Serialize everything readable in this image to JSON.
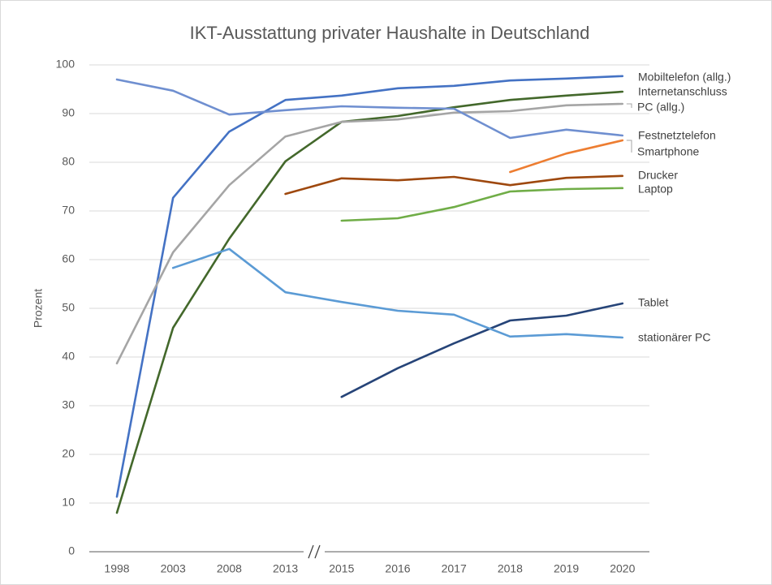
{
  "chart_data": {
    "type": "line",
    "title": "IKT-Ausstattung privater Haushalte in Deutschland",
    "y_label": "Prozent",
    "categories": [
      "1998",
      "2003",
      "2008",
      "2013",
      "2015",
      "2016",
      "2017",
      "2018",
      "2019",
      "2020"
    ],
    "ylim": [
      0,
      100
    ],
    "yticks": [
      0,
      10,
      20,
      30,
      40,
      50,
      60,
      70,
      80,
      90,
      100
    ],
    "grid": true,
    "series": [
      {
        "name": "Mobiltelefon (allg.)",
        "color": "#4472c4",
        "values": [
          11.3,
          72.7,
          86.3,
          92.8,
          93.7,
          95.2,
          95.7,
          96.8,
          97.2,
          97.7
        ]
      },
      {
        "name": "Internetanschluss",
        "color": "#43682b",
        "values": [
          8.0,
          46,
          64.3,
          80.2,
          88.3,
          89.5,
          91.3,
          92.8,
          93.7,
          94.5
        ]
      },
      {
        "name": "PC (allg.)",
        "color": "#a5a5a5",
        "values": [
          38.7,
          61.5,
          75.3,
          85.3,
          88.3,
          88.8,
          90.2,
          90.5,
          91.7,
          92
        ]
      },
      {
        "name": "Festnetztelefon",
        "color": "#6f8fd0",
        "values": [
          97,
          94.7,
          89.8,
          90.7,
          91.5,
          91.2,
          91,
          85,
          86.7,
          85.5
        ]
      },
      {
        "name": "Smartphone",
        "color": "#ed7d31",
        "values": [
          null,
          null,
          null,
          null,
          null,
          null,
          null,
          78,
          81.8,
          84.5
        ]
      },
      {
        "name": "Drucker",
        "color": "#9e480e",
        "values": [
          null,
          null,
          null,
          73.5,
          76.7,
          76.3,
          77,
          75.3,
          76.8,
          77.2
        ]
      },
      {
        "name": "Laptop",
        "color": "#70ad47",
        "values": [
          null,
          null,
          null,
          null,
          68,
          68.5,
          70.8,
          74,
          74.5,
          74.7
        ]
      },
      {
        "name": "Tablet",
        "color": "#264478",
        "values": [
          null,
          null,
          null,
          null,
          31.8,
          37.7,
          42.8,
          47.5,
          48.5,
          51
        ]
      },
      {
        "name": "stationärer PC",
        "color": "#5b9bd5",
        "values": [
          null,
          58.3,
          62.2,
          53.3,
          51.3,
          49.5,
          48.7,
          44.2,
          44.7,
          44
        ]
      }
    ]
  }
}
